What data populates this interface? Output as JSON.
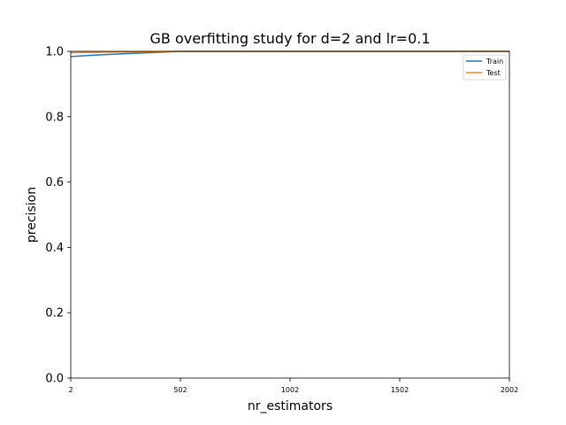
{
  "chart_data": {
    "type": "line",
    "title": "GB overfitting study for d=2 and lr=0.1",
    "xlabel": "nr_estimators",
    "ylabel": "precision",
    "xlim": [
      2,
      2002
    ],
    "ylim": [
      0.0,
      1.0
    ],
    "xticks": [
      2,
      502,
      1002,
      1502,
      2002
    ],
    "xtick_labels": [
      "2",
      "502",
      "1002",
      "1502",
      "2002"
    ],
    "yticks": [
      0.0,
      0.2,
      0.4,
      0.6,
      0.8,
      1.0
    ],
    "ytick_labels": [
      "0.0",
      "0.2",
      "0.4",
      "0.6",
      "0.8",
      "1.0"
    ],
    "grid": false,
    "legend_position": "top-right",
    "series": [
      {
        "name": "Train",
        "color": "#1f77b4",
        "x": [
          2,
          102,
          252,
          502,
          1002,
          1502,
          2002
        ],
        "y": [
          0.984,
          0.988,
          0.993,
          1.0,
          1.0,
          1.0,
          1.0
        ]
      },
      {
        "name": "Test",
        "color": "#ff7f0e",
        "x": [
          2,
          102,
          252,
          502,
          1002,
          1502,
          2002
        ],
        "y": [
          0.996,
          0.997,
          0.998,
          1.0,
          1.0,
          1.0,
          1.0
        ]
      }
    ]
  }
}
